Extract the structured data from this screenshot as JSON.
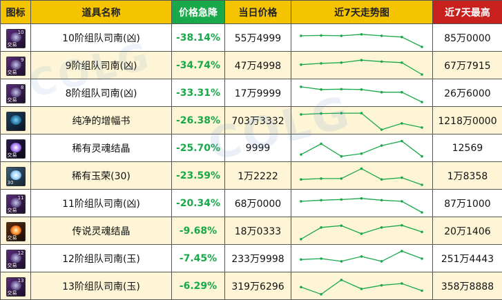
{
  "header": {
    "icon": "图标",
    "name": "道具名称",
    "drop": "价格急降",
    "price": "当日价格",
    "trend": "近7天走势图",
    "max": "近7天最高"
  },
  "colors": {
    "header_bg": "#f5c400",
    "drop_header_bg": "#19a84a",
    "max_header_bg": "#c8201c",
    "drop_text": "#19a84a",
    "trend_line": "#19a84a",
    "row_alt_bg": "#fdf5d6"
  },
  "rows": [
    {
      "icon": "compass-icon",
      "icon_level": "10",
      "icon_tag": "交易",
      "name": "10阶组队司南(凶)",
      "drop": "-38.14%",
      "price": "55万4999",
      "max": "85万0000",
      "trend": [
        0.62,
        0.64,
        0.62,
        0.7,
        0.62,
        0.55,
        0.0
      ]
    },
    {
      "icon": "compass-icon",
      "icon_level": "9",
      "icon_tag": "交易",
      "name": "9阶组队司南(凶)",
      "drop": "-34.74%",
      "price": "47万4998",
      "max": "67万7915",
      "trend": [
        0.55,
        0.62,
        0.66,
        0.8,
        0.72,
        0.66,
        0.0
      ]
    },
    {
      "icon": "compass-icon",
      "icon_level": "8",
      "icon_tag": "交易",
      "name": "8阶组队司南(凶)",
      "drop": "-33.31%",
      "price": "17万9999",
      "max": "26万6000",
      "trend": [
        0.85,
        0.7,
        0.72,
        0.7,
        0.55,
        0.55,
        0.0
      ]
    },
    {
      "icon": "enhance-book-icon",
      "icon_level": "",
      "icon_tag": "",
      "name": "纯净的增幅书",
      "drop": "-26.38%",
      "price": "703万3332",
      "max": "1218万0000",
      "trend": [
        0.85,
        0.9,
        0.92,
        0.92,
        0.0,
        0.35,
        0.12
      ]
    },
    {
      "icon": "soul-crystal-icon",
      "icon_level": "",
      "icon_tag": "交易",
      "name": "稀有灵魂结晶",
      "drop": "-25.70%",
      "price": "9999",
      "max": "12569",
      "trend": [
        0.15,
        0.75,
        0.05,
        0.2,
        0.65,
        0.9,
        0.05
      ]
    },
    {
      "icon": "jade-rose-icon",
      "icon_level": "",
      "icon_tag": "30",
      "name": "稀有玉荣(30)",
      "drop": "-23.59%",
      "price": "1万2222",
      "max": "1万8358",
      "trend": [
        0.3,
        0.35,
        0.35,
        0.9,
        0.3,
        0.4,
        0.0
      ]
    },
    {
      "icon": "compass-icon",
      "icon_level": "11",
      "icon_tag": "交易",
      "name": "11阶组队司南(凶)",
      "drop": "-20.34%",
      "price": "68万0000",
      "max": "87万1000",
      "trend": [
        0.62,
        0.68,
        0.72,
        0.78,
        0.68,
        0.62,
        0.0
      ]
    },
    {
      "icon": "legend-soul-icon",
      "icon_level": "",
      "icon_tag": "交易",
      "name": "传说灵魂结晶",
      "drop": "-9.68%",
      "price": "18万0333",
      "max": "20万1406",
      "trend": [
        0.05,
        0.7,
        0.8,
        0.35,
        0.7,
        0.82,
        0.45
      ]
    },
    {
      "icon": "compass-icon",
      "icon_level": "12",
      "icon_tag": "交易",
      "name": "12阶组队司南(玉)",
      "drop": "-7.45%",
      "price": "233万9998",
      "max": "251万4443",
      "trend": [
        0.45,
        0.5,
        0.35,
        0.62,
        0.35,
        0.92,
        0.5
      ]
    },
    {
      "icon": "compass-icon",
      "icon_level": "13",
      "icon_tag": "交易",
      "name": "13阶组队司南(玉)",
      "drop": "-6.29%",
      "price": "319万6296",
      "max": "358万8888",
      "trend": [
        0.45,
        0.05,
        0.85,
        0.35,
        0.55,
        0.65,
        0.25
      ]
    }
  ]
}
